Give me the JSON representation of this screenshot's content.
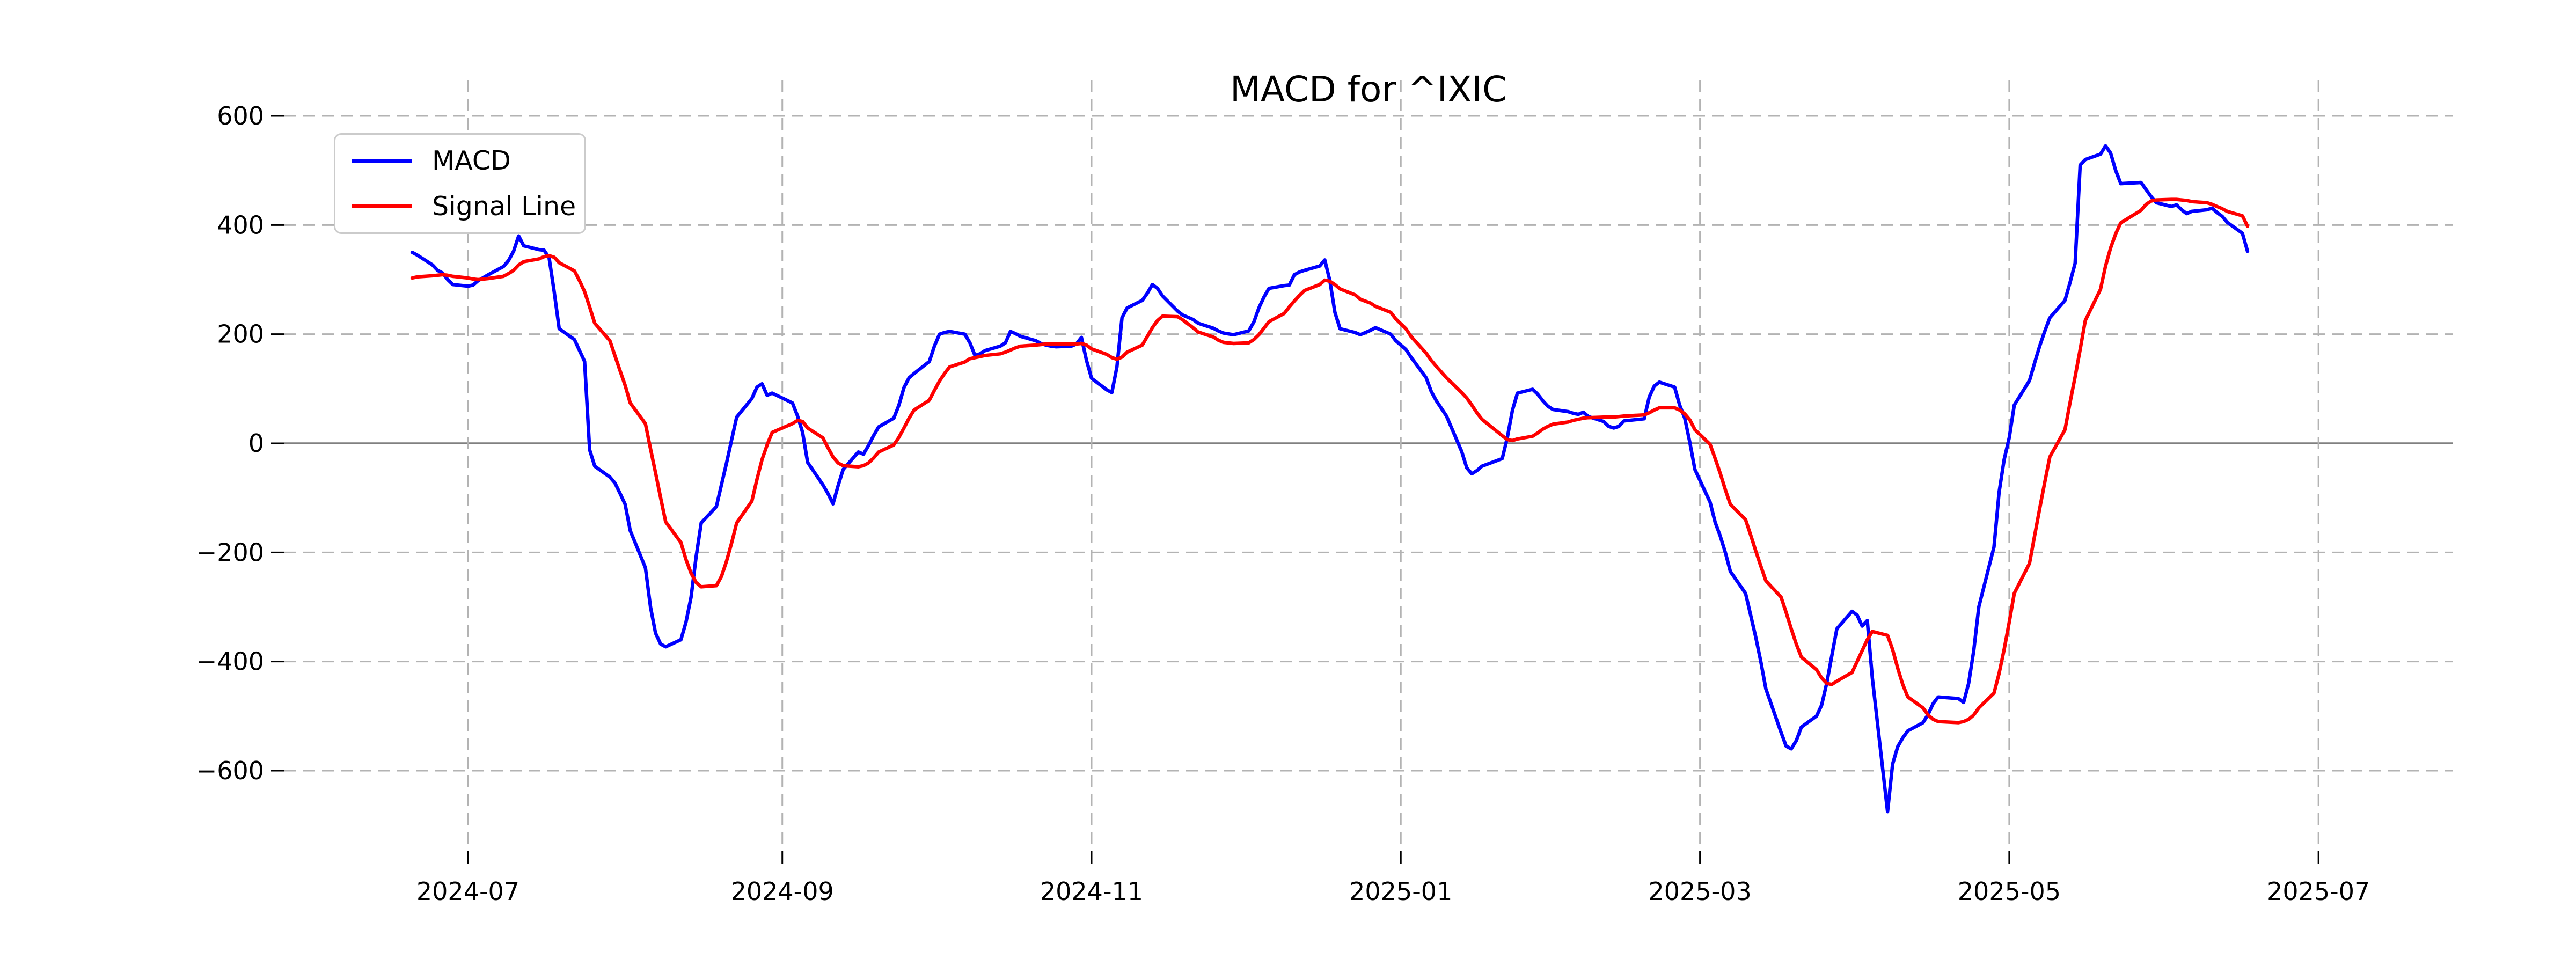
{
  "chart_data": {
    "type": "line",
    "title": "MACD for ^IXIC",
    "xlabel": "",
    "ylabel": "",
    "grid": true,
    "legend_position": "upper left",
    "zero_line": true,
    "colors": {
      "macd": "#0000ff",
      "signal": "#ff0000",
      "grid": "#b3b3b3",
      "zero_line": "#808080",
      "text": "#000000",
      "legend_border": "#cbcbcb"
    },
    "ylim": [
      -700,
      620
    ],
    "y_ticks": [
      {
        "label": "600",
        "value": 600
      },
      {
        "label": "400",
        "value": 400
      },
      {
        "label": "200",
        "value": 200
      },
      {
        "label": "0",
        "value": 0
      },
      {
        "label": "−200",
        "value": -200
      },
      {
        "label": "−400",
        "value": -400
      },
      {
        "label": "−600",
        "value": -600
      }
    ],
    "x_ticks": [
      {
        "label": "2024-07",
        "date": "2024-07-01"
      },
      {
        "label": "2024-09",
        "date": "2024-09-01"
      },
      {
        "label": "2024-11",
        "date": "2024-11-01"
      },
      {
        "label": "2025-01",
        "date": "2025-01-01"
      },
      {
        "label": "2025-03",
        "date": "2025-03-01"
      },
      {
        "label": "2025-05",
        "date": "2025-05-01"
      },
      {
        "label": "2025-07",
        "date": "2025-07-01"
      }
    ],
    "x": [
      "2024-06-20",
      "2024-06-21",
      "2024-06-24",
      "2024-06-25",
      "2024-06-26",
      "2024-06-27",
      "2024-06-28",
      "2024-07-01",
      "2024-07-02",
      "2024-07-03",
      "2024-07-05",
      "2024-07-08",
      "2024-07-09",
      "2024-07-10",
      "2024-07-11",
      "2024-07-12",
      "2024-07-15",
      "2024-07-16",
      "2024-07-17",
      "2024-07-18",
      "2024-07-19",
      "2024-07-22",
      "2024-07-23",
      "2024-07-24",
      "2024-07-25",
      "2024-07-26",
      "2024-07-29",
      "2024-07-30",
      "2024-07-31",
      "2024-08-01",
      "2024-08-02",
      "2024-08-05",
      "2024-08-06",
      "2024-08-07",
      "2024-08-08",
      "2024-08-09",
      "2024-08-12",
      "2024-08-13",
      "2024-08-14",
      "2024-08-15",
      "2024-08-16",
      "2024-08-19",
      "2024-08-20",
      "2024-08-21",
      "2024-08-22",
      "2024-08-23",
      "2024-08-26",
      "2024-08-27",
      "2024-08-28",
      "2024-08-29",
      "2024-08-30",
      "2024-09-03",
      "2024-09-04",
      "2024-09-05",
      "2024-09-06",
      "2024-09-09",
      "2024-09-10",
      "2024-09-11",
      "2024-09-12",
      "2024-09-13",
      "2024-09-16",
      "2024-09-17",
      "2024-09-18",
      "2024-09-19",
      "2024-09-20",
      "2024-09-23",
      "2024-09-24",
      "2024-09-25",
      "2024-09-26",
      "2024-09-27",
      "2024-09-30",
      "2024-10-01",
      "2024-10-02",
      "2024-10-03",
      "2024-10-04",
      "2024-10-07",
      "2024-10-08",
      "2024-10-09",
      "2024-10-10",
      "2024-10-11",
      "2024-10-14",
      "2024-10-15",
      "2024-10-16",
      "2024-10-17",
      "2024-10-18",
      "2024-10-21",
      "2024-10-22",
      "2024-10-23",
      "2024-10-24",
      "2024-10-25",
      "2024-10-28",
      "2024-10-29",
      "2024-10-30",
      "2024-10-31",
      "2024-11-01",
      "2024-11-04",
      "2024-11-05",
      "2024-11-06",
      "2024-11-07",
      "2024-11-08",
      "2024-11-11",
      "2024-11-12",
      "2024-11-13",
      "2024-11-14",
      "2024-11-15",
      "2024-11-18",
      "2024-11-19",
      "2024-11-20",
      "2024-11-21",
      "2024-11-22",
      "2024-11-25",
      "2024-11-26",
      "2024-11-27",
      "2024-11-29",
      "2024-12-02",
      "2024-12-03",
      "2024-12-04",
      "2024-12-05",
      "2024-12-06",
      "2024-12-09",
      "2024-12-10",
      "2024-12-11",
      "2024-12-12",
      "2024-12-13",
      "2024-12-16",
      "2024-12-17",
      "2024-12-18",
      "2024-12-19",
      "2024-12-20",
      "2024-12-23",
      "2024-12-24",
      "2024-12-26",
      "2024-12-27",
      "2024-12-30",
      "2024-12-31",
      "2025-01-02",
      "2025-01-03",
      "2025-01-06",
      "2025-01-07",
      "2025-01-08",
      "2025-01-10",
      "2025-01-13",
      "2025-01-14",
      "2025-01-15",
      "2025-01-16",
      "2025-01-17",
      "2025-01-21",
      "2025-01-22",
      "2025-01-23",
      "2025-01-24",
      "2025-01-27",
      "2025-01-28",
      "2025-01-29",
      "2025-01-30",
      "2025-01-31",
      "2025-02-03",
      "2025-02-04",
      "2025-02-05",
      "2025-02-06",
      "2025-02-07",
      "2025-02-10",
      "2025-02-11",
      "2025-02-12",
      "2025-02-13",
      "2025-02-14",
      "2025-02-18",
      "2025-02-19",
      "2025-02-20",
      "2025-02-21",
      "2025-02-24",
      "2025-02-25",
      "2025-02-26",
      "2025-02-27",
      "2025-02-28",
      "2025-03-03",
      "2025-03-04",
      "2025-03-05",
      "2025-03-06",
      "2025-03-07",
      "2025-03-10",
      "2025-03-11",
      "2025-03-12",
      "2025-03-13",
      "2025-03-14",
      "2025-03-17",
      "2025-03-18",
      "2025-03-19",
      "2025-03-20",
      "2025-03-21",
      "2025-03-24",
      "2025-03-25",
      "2025-03-26",
      "2025-03-27",
      "2025-03-28",
      "2025-03-31",
      "2025-04-01",
      "2025-04-02",
      "2025-04-03",
      "2025-04-04",
      "2025-04-07",
      "2025-04-08",
      "2025-04-09",
      "2025-04-10",
      "2025-04-11",
      "2025-04-14",
      "2025-04-15",
      "2025-04-16",
      "2025-04-17",
      "2025-04-21",
      "2025-04-22",
      "2025-04-23",
      "2025-04-24",
      "2025-04-25",
      "2025-04-28",
      "2025-04-29",
      "2025-04-30",
      "2025-05-01",
      "2025-05-02",
      "2025-05-05",
      "2025-05-06",
      "2025-05-07",
      "2025-05-08",
      "2025-05-09",
      "2025-05-12",
      "2025-05-13",
      "2025-05-14",
      "2025-05-15",
      "2025-05-16",
      "2025-05-19",
      "2025-05-20",
      "2025-05-21",
      "2025-05-22",
      "2025-05-23",
      "2025-05-27",
      "2025-05-28",
      "2025-05-29",
      "2025-05-30",
      "2025-06-02",
      "2025-06-03",
      "2025-06-04",
      "2025-06-05",
      "2025-06-06",
      "2025-06-09",
      "2025-06-10",
      "2025-06-11",
      "2025-06-12",
      "2025-06-13",
      "2025-06-16",
      "2025-06-17"
    ],
    "series": [
      {
        "name": "MACD",
        "color": "#0000ff",
        "values": [
          350,
          345,
          327,
          317,
          312,
          300,
          291,
          288,
          290,
          298,
          309,
          324,
          335,
          352,
          380,
          362,
          355,
          354,
          340,
          278,
          210,
          190,
          170,
          150,
          -12,
          -42,
          -62,
          -73,
          -92,
          -112,
          -160,
          -228,
          -300,
          -348,
          -368,
          -373,
          -360,
          -328,
          -282,
          -208,
          -146,
          -116,
          -76,
          -36,
          6,
          48,
          82,
          103,
          109,
          88,
          92,
          74,
          50,
          20,
          -35,
          -76,
          -92,
          -111,
          -78,
          -48,
          -16,
          -20,
          -4,
          14,
          30,
          46,
          70,
          102,
          120,
          128,
          150,
          178,
          200,
          203,
          205,
          200,
          184,
          161,
          164,
          170,
          178,
          184,
          205,
          201,
          196,
          188,
          183,
          180,
          178,
          177,
          178,
          182,
          194,
          152,
          119,
          98,
          93,
          140,
          230,
          248,
          262,
          275,
          291,
          284,
          270,
          242,
          235,
          231,
          227,
          220,
          211,
          206,
          202,
          199,
          206,
          222,
          248,
          268,
          284,
          289,
          290,
          309,
          314,
          317,
          325,
          336,
          298,
          240,
          210,
          203,
          199,
          207,
          212,
          200,
          188,
          172,
          158,
          120,
          95,
          78,
          50,
          -15,
          -45,
          -56,
          -50,
          -42,
          -28,
          10,
          60,
          92,
          99,
          90,
          78,
          68,
          62,
          58,
          55,
          53,
          57,
          49,
          40,
          31,
          28,
          31,
          41,
          45,
          85,
          105,
          112,
          103,
          70,
          46,
          2,
          -48,
          -108,
          -145,
          -170,
          -200,
          -235,
          -275,
          -315,
          -355,
          -400,
          -450,
          -530,
          -555,
          -560,
          -545,
          -520,
          -500,
          -480,
          -440,
          -390,
          -340,
          -308,
          -315,
          -335,
          -325,
          -430,
          -675,
          -588,
          -556,
          -540,
          -527,
          -512,
          -497,
          -477,
          -465,
          -468,
          -475,
          -440,
          -380,
          -300,
          -190,
          -90,
          -30,
          10,
          70,
          115,
          147,
          178,
          205,
          230,
          262,
          295,
          330,
          510,
          520,
          530,
          545,
          532,
          500,
          476,
          478,
          465,
          452,
          441,
          434,
          437,
          428,
          421,
          425,
          428,
          431,
          423,
          416,
          405,
          385,
          352
        ]
      },
      {
        "name": "Signal Line",
        "color": "#ff0000",
        "values": [
          303,
          305,
          307,
          308,
          309,
          308,
          306,
          303,
          301,
          300,
          302,
          306,
          311,
          317,
          327,
          333,
          338,
          342,
          344,
          341,
          331,
          316,
          298,
          278,
          250,
          220,
          188,
          160,
          133,
          106,
          74,
          36,
          -10,
          -54,
          -100,
          -144,
          -182,
          -213,
          -238,
          -255,
          -263,
          -261,
          -244,
          -216,
          -183,
          -146,
          -106,
          -66,
          -30,
          -3,
          20,
          36,
          42,
          40,
          28,
          10,
          -8,
          -25,
          -36,
          -41,
          -43,
          -41,
          -36,
          -27,
          -16,
          -3,
          11,
          28,
          46,
          61,
          79,
          97,
          114,
          128,
          140,
          149,
          155,
          157,
          159,
          161,
          164,
          167,
          171,
          175,
          178,
          180,
          181,
          182,
          182,
          182,
          182,
          182,
          183,
          180,
          173,
          163,
          157,
          154,
          158,
          167,
          180,
          196,
          212,
          225,
          233,
          232,
          226,
          219,
          212,
          204,
          195,
          189,
          185,
          183,
          184,
          190,
          199,
          211,
          223,
          238,
          250,
          261,
          271,
          280,
          291,
          299,
          297,
          291,
          283,
          272,
          264,
          257,
          251,
          240,
          228,
          210,
          196,
          165,
          152,
          141,
          120,
          93,
          83,
          70,
          56,
          44,
          14,
          7,
          5,
          8,
          13,
          19,
          26,
          31,
          35,
          39,
          42,
          44,
          46,
          47,
          48,
          48,
          48,
          49,
          50,
          52,
          56,
          61,
          65,
          65,
          61,
          54,
          43,
          25,
          -2,
          -28,
          -55,
          -85,
          -112,
          -140,
          -168,
          -197,
          -225,
          -252,
          -282,
          -310,
          -340,
          -368,
          -392,
          -415,
          -430,
          -440,
          -442,
          -436,
          -420,
          -400,
          -380,
          -360,
          -345,
          -352,
          -378,
          -412,
          -442,
          -465,
          -485,
          -498,
          -506,
          -510,
          -512,
          -510,
          -506,
          -498,
          -485,
          -458,
          -422,
          -378,
          -328,
          -275,
          -220,
          -170,
          -120,
          -72,
          -25,
          25,
          75,
          122,
          172,
          225,
          282,
          325,
          358,
          384,
          404,
          427,
          438,
          444,
          446,
          447,
          447,
          446,
          445,
          443,
          441,
          438,
          434,
          430,
          425,
          417,
          398
        ]
      }
    ]
  },
  "legend": {
    "items": [
      {
        "label": "MACD"
      },
      {
        "label": "Signal Line"
      }
    ]
  }
}
